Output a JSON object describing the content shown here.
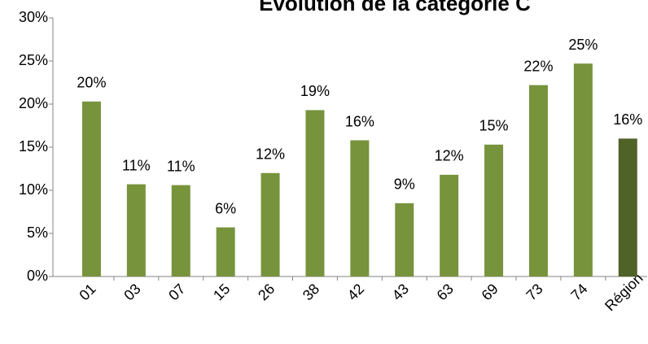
{
  "chart_data": {
    "type": "bar",
    "title": "Évolution de la catégorie C",
    "categories": [
      "01",
      "03",
      "07",
      "15",
      "26",
      "38",
      "42",
      "43",
      "63",
      "69",
      "73",
      "74",
      "Région"
    ],
    "values": [
      20.3,
      10.7,
      10.6,
      5.7,
      12.0,
      19.3,
      15.8,
      8.5,
      11.8,
      15.3,
      22.2,
      24.7,
      16.0
    ],
    "value_labels": [
      "20%",
      "11%",
      "11%",
      "6%",
      "12%",
      "19%",
      "16%",
      "9%",
      "12%",
      "15%",
      "22%",
      "25%",
      "16%"
    ],
    "colors": [
      "#77933c",
      "#77933c",
      "#77933c",
      "#77933c",
      "#77933c",
      "#77933c",
      "#77933c",
      "#77933c",
      "#77933c",
      "#77933c",
      "#77933c",
      "#77933c",
      "#4f6228"
    ],
    "ylim": [
      0,
      30
    ],
    "yticks": [
      {
        "value": 0,
        "label": "0%"
      },
      {
        "value": 5,
        "label": "5%"
      },
      {
        "value": 10,
        "label": "10%"
      },
      {
        "value": 15,
        "label": "15%"
      },
      {
        "value": 20,
        "label": "20%"
      },
      {
        "value": 25,
        "label": "25%"
      },
      {
        "value": 30,
        "label": "30%"
      }
    ],
    "grid": false
  }
}
